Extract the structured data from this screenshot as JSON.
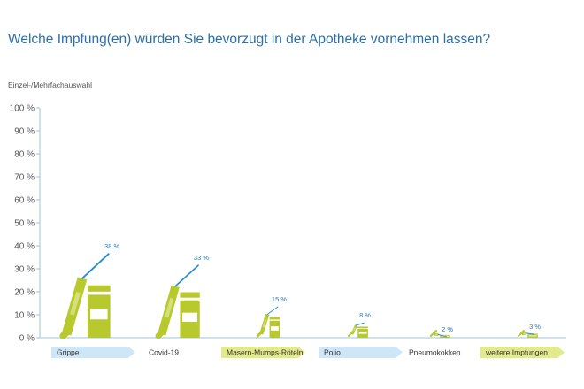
{
  "title": "Welche Impfung(en) würden Sie bevorzugt in der Apotheke vornehmen lassen?",
  "subtitle": "Einzel-/Mehrfachauswahl",
  "colors": {
    "title": "#2a6fa8",
    "accent_green": "#b7c92c",
    "accent_green_light": "#d6e07a",
    "needle": "#2a8fc8",
    "label_blue": "#2a7bb8",
    "tag_blue": "#cfe6f6",
    "tag_yellow": "#e3ea8c",
    "axis": "#9bc4e0"
  },
  "chart_data": {
    "type": "bar",
    "title": "Welche Impfung(en) würden Sie bevorzugt in der Apotheke vornehmen lassen?",
    "subtitle": "Einzel-/Mehrfachauswahl",
    "categories": [
      "Grippe",
      "Covid-19",
      "Masern-Mumps-Röteln",
      "Polio",
      "Pneumokokken",
      "weitere Impfungen"
    ],
    "values": [
      38,
      33,
      15,
      8,
      2,
      3
    ],
    "value_labels": [
      "38 %",
      "33 %",
      "15 %",
      "8 %",
      "2 %",
      "3 %"
    ],
    "ylim": [
      0,
      100
    ],
    "yticks": [
      0,
      10,
      20,
      30,
      40,
      50,
      60,
      70,
      80,
      90,
      100
    ],
    "ytick_labels": [
      "0 %",
      "10 %",
      "20 %",
      "30 %",
      "40 %",
      "50 %",
      "60 %",
      "70 %",
      "80 %",
      "90 %",
      "100 %"
    ],
    "category_tag_styles": [
      "blue",
      "none",
      "yellow",
      "blue",
      "none",
      "yellow"
    ],
    "mark_icon": "syringe-and-vial-icon",
    "grid": false
  }
}
